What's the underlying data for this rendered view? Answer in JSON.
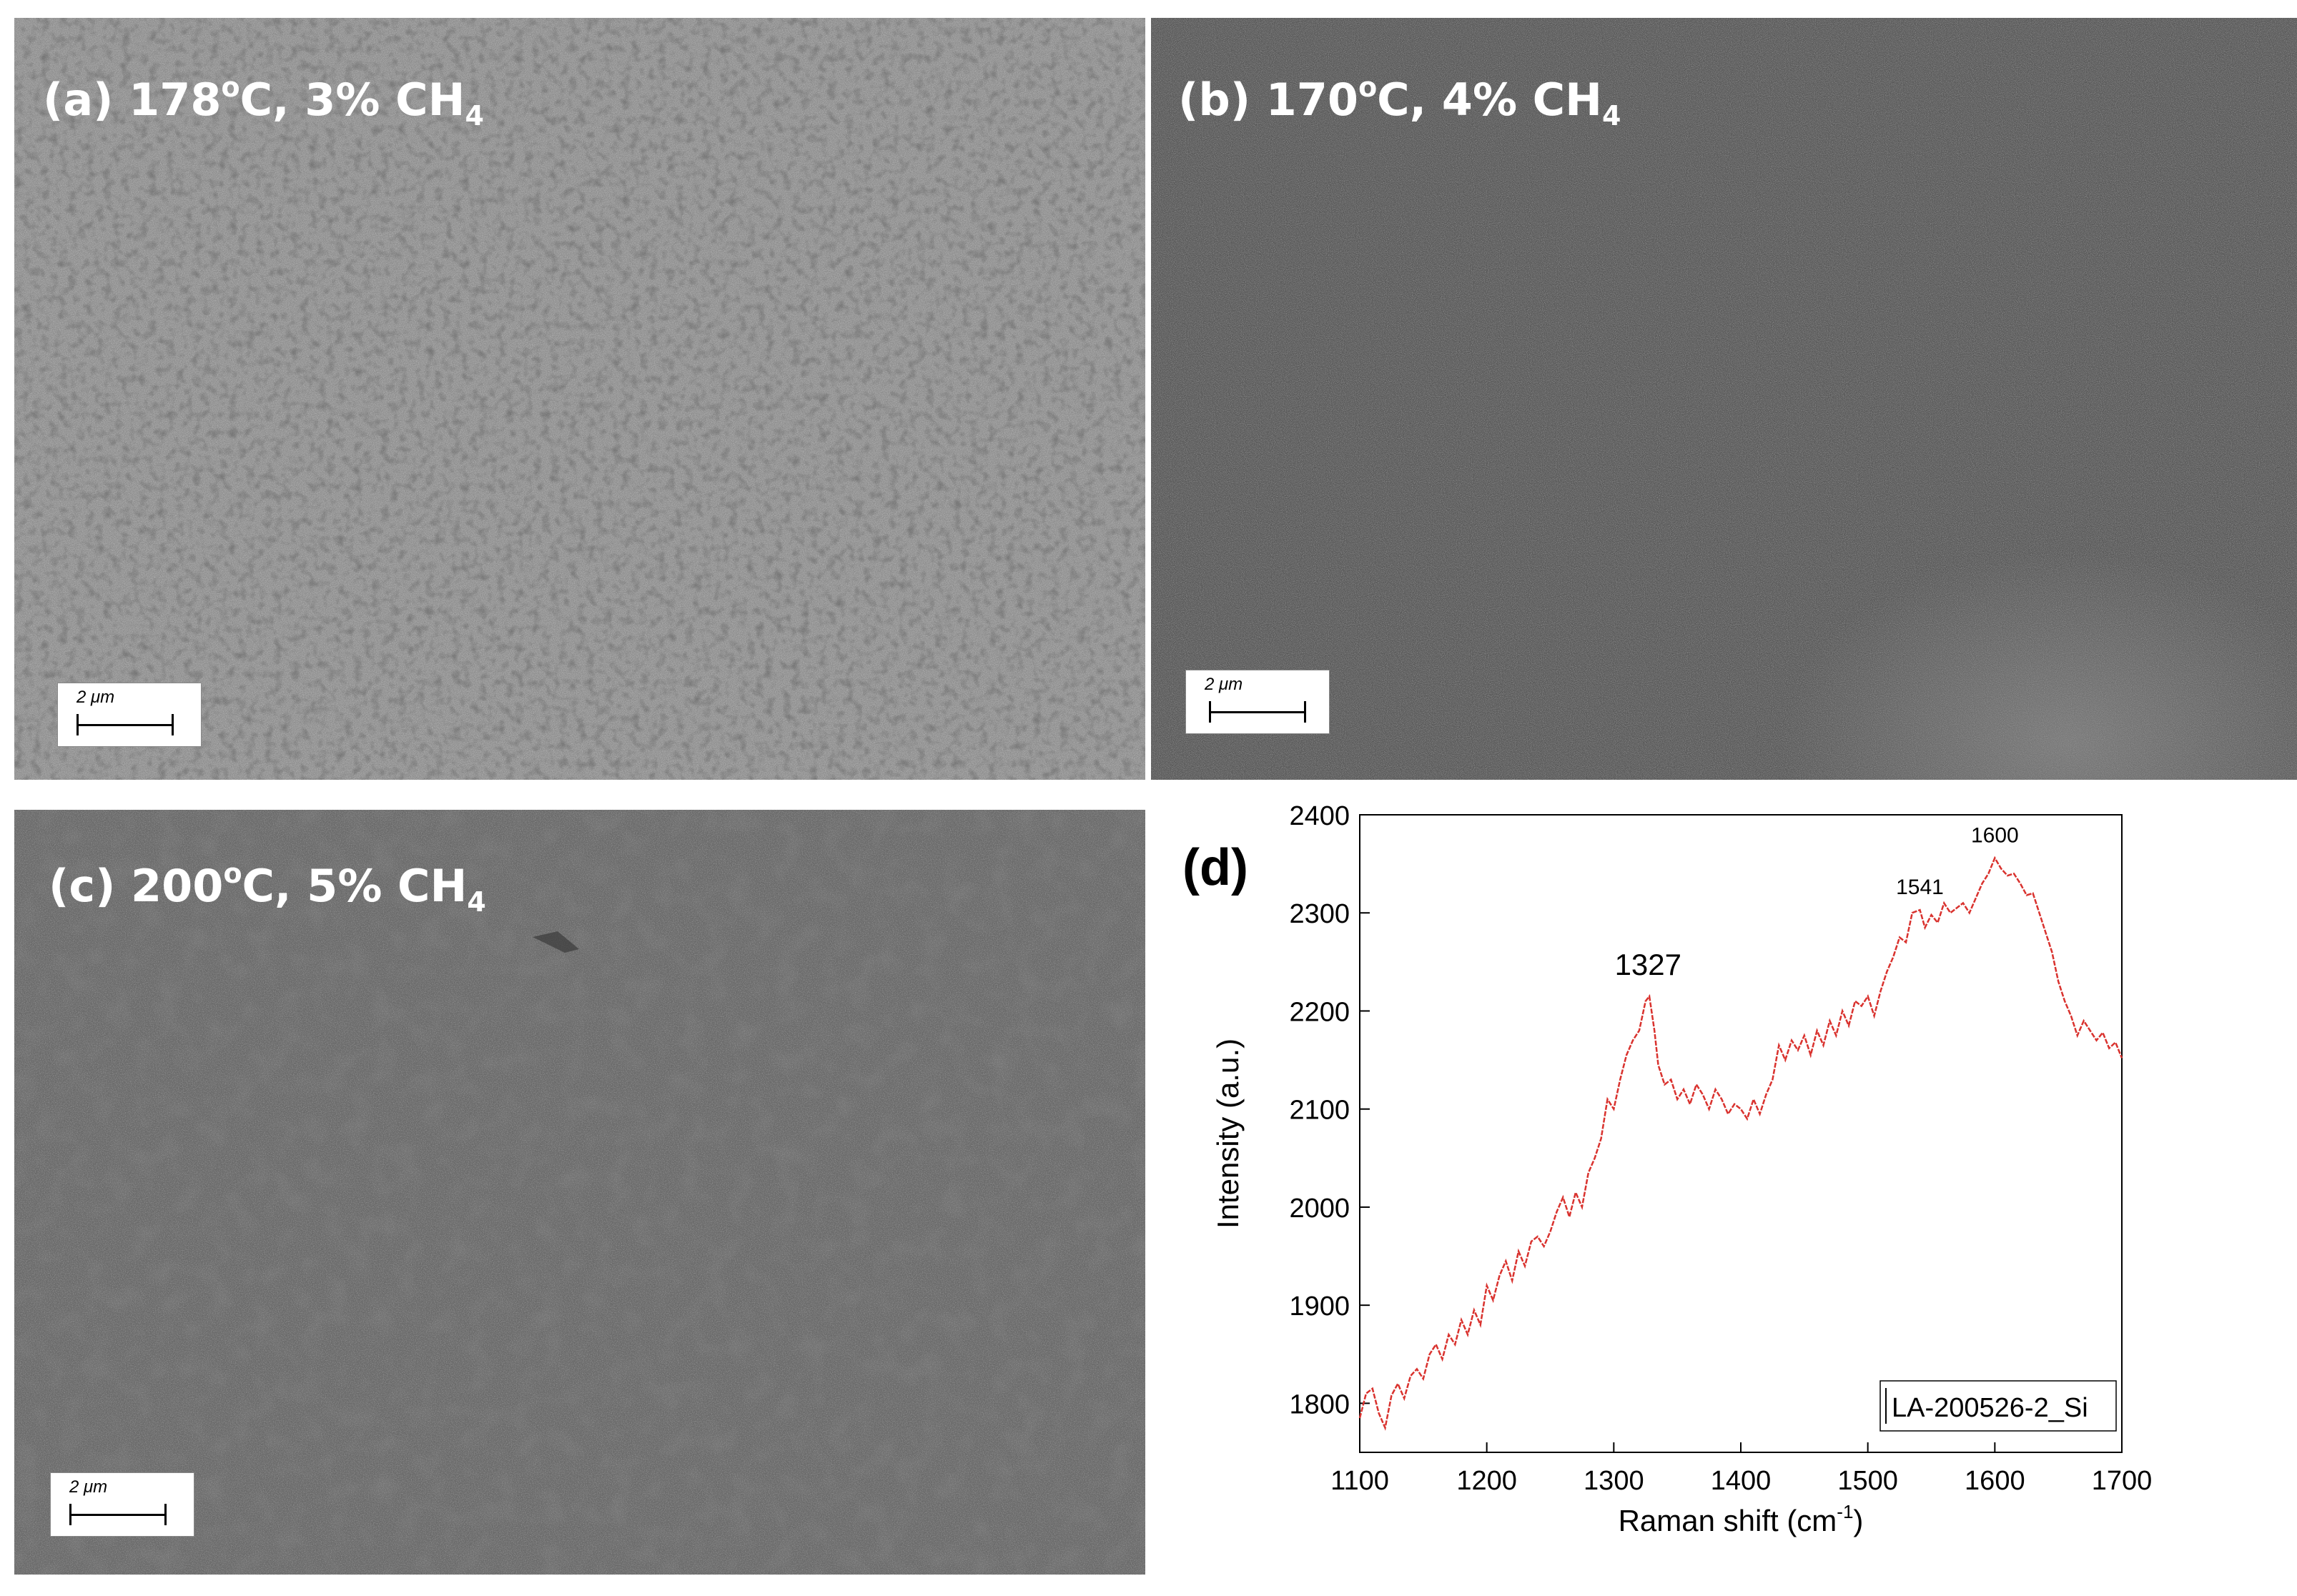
{
  "panels": {
    "a": {
      "label": "(a) 178",
      "deg": "o",
      "cond": "C, 3% CH",
      "sub": "4",
      "scale": "2 μm"
    },
    "b": {
      "label": "(b) 170",
      "deg": "o",
      "cond": "C, 4% CH",
      "sub": "4",
      "scale": "2 μm"
    },
    "c": {
      "label": "(c) 200",
      "deg": "o",
      "cond": "C, 5% CH",
      "sub": "4",
      "scale": "2 μm"
    },
    "d": {
      "label": "(d)"
    }
  },
  "colors": {
    "line": "#d9322e",
    "axis": "#000000"
  },
  "chart_data": {
    "type": "line",
    "title": "",
    "xlabel": "Raman shift (cm",
    "xlabel_sup": "-1",
    "xlabel_end": ")",
    "ylabel": "Intensity (a.u.)",
    "xlim": [
      1100,
      1700
    ],
    "ylim": [
      1750,
      2400
    ],
    "xticks": [
      1100,
      1200,
      1300,
      1400,
      1500,
      1600,
      1700
    ],
    "yticks": [
      1800,
      1900,
      2000,
      2100,
      2200,
      2300,
      2400
    ],
    "legend": "LA-200526-2_Si",
    "annotations": [
      {
        "text": "1327",
        "x": 1327,
        "y": 2215,
        "size": "large"
      },
      {
        "text": "1541",
        "x": 1541,
        "y": 2303,
        "size": "small"
      },
      {
        "text": "1600",
        "x": 1600,
        "y": 2356,
        "size": "small"
      }
    ],
    "series": [
      {
        "name": "LA-200526-2_Si",
        "x": [
          1100,
          1105,
          1110,
          1115,
          1120,
          1125,
          1130,
          1135,
          1140,
          1145,
          1150,
          1155,
          1160,
          1165,
          1170,
          1175,
          1180,
          1185,
          1190,
          1195,
          1200,
          1205,
          1210,
          1215,
          1220,
          1225,
          1230,
          1235,
          1240,
          1245,
          1250,
          1255,
          1260,
          1265,
          1270,
          1275,
          1280,
          1285,
          1290,
          1295,
          1300,
          1305,
          1310,
          1315,
          1320,
          1325,
          1328,
          1332,
          1335,
          1340,
          1345,
          1350,
          1355,
          1360,
          1365,
          1370,
          1375,
          1380,
          1385,
          1390,
          1395,
          1400,
          1405,
          1410,
          1415,
          1420,
          1425,
          1430,
          1435,
          1440,
          1445,
          1450,
          1455,
          1460,
          1465,
          1470,
          1475,
          1480,
          1485,
          1490,
          1495,
          1500,
          1505,
          1510,
          1515,
          1520,
          1525,
          1530,
          1535,
          1541,
          1545,
          1550,
          1555,
          1560,
          1565,
          1570,
          1575,
          1580,
          1585,
          1590,
          1595,
          1600,
          1605,
          1610,
          1615,
          1620,
          1625,
          1630,
          1635,
          1640,
          1645,
          1650,
          1655,
          1660,
          1665,
          1670,
          1675,
          1680,
          1685,
          1690,
          1695,
          1700
        ],
        "values": [
          1785,
          1810,
          1815,
          1790,
          1775,
          1808,
          1820,
          1805,
          1828,
          1835,
          1825,
          1850,
          1860,
          1845,
          1870,
          1860,
          1885,
          1870,
          1895,
          1880,
          1920,
          1905,
          1930,
          1945,
          1925,
          1955,
          1940,
          1965,
          1970,
          1960,
          1975,
          1995,
          2010,
          1990,
          2015,
          2000,
          2035,
          2050,
          2070,
          2110,
          2100,
          2130,
          2155,
          2170,
          2180,
          2210,
          2215,
          2180,
          2145,
          2125,
          2130,
          2110,
          2120,
          2105,
          2125,
          2115,
          2100,
          2120,
          2110,
          2095,
          2105,
          2100,
          2090,
          2110,
          2095,
          2115,
          2130,
          2165,
          2150,
          2170,
          2160,
          2175,
          2155,
          2180,
          2165,
          2190,
          2175,
          2200,
          2185,
          2210,
          2205,
          2215,
          2195,
          2220,
          2240,
          2255,
          2275,
          2270,
          2300,
          2303,
          2285,
          2298,
          2290,
          2310,
          2300,
          2305,
          2310,
          2300,
          2315,
          2330,
          2340,
          2356,
          2345,
          2338,
          2340,
          2330,
          2318,
          2320,
          2300,
          2280,
          2260,
          2230,
          2210,
          2195,
          2175,
          2190,
          2180,
          2170,
          2178,
          2162,
          2168,
          2152
        ]
      }
    ]
  }
}
